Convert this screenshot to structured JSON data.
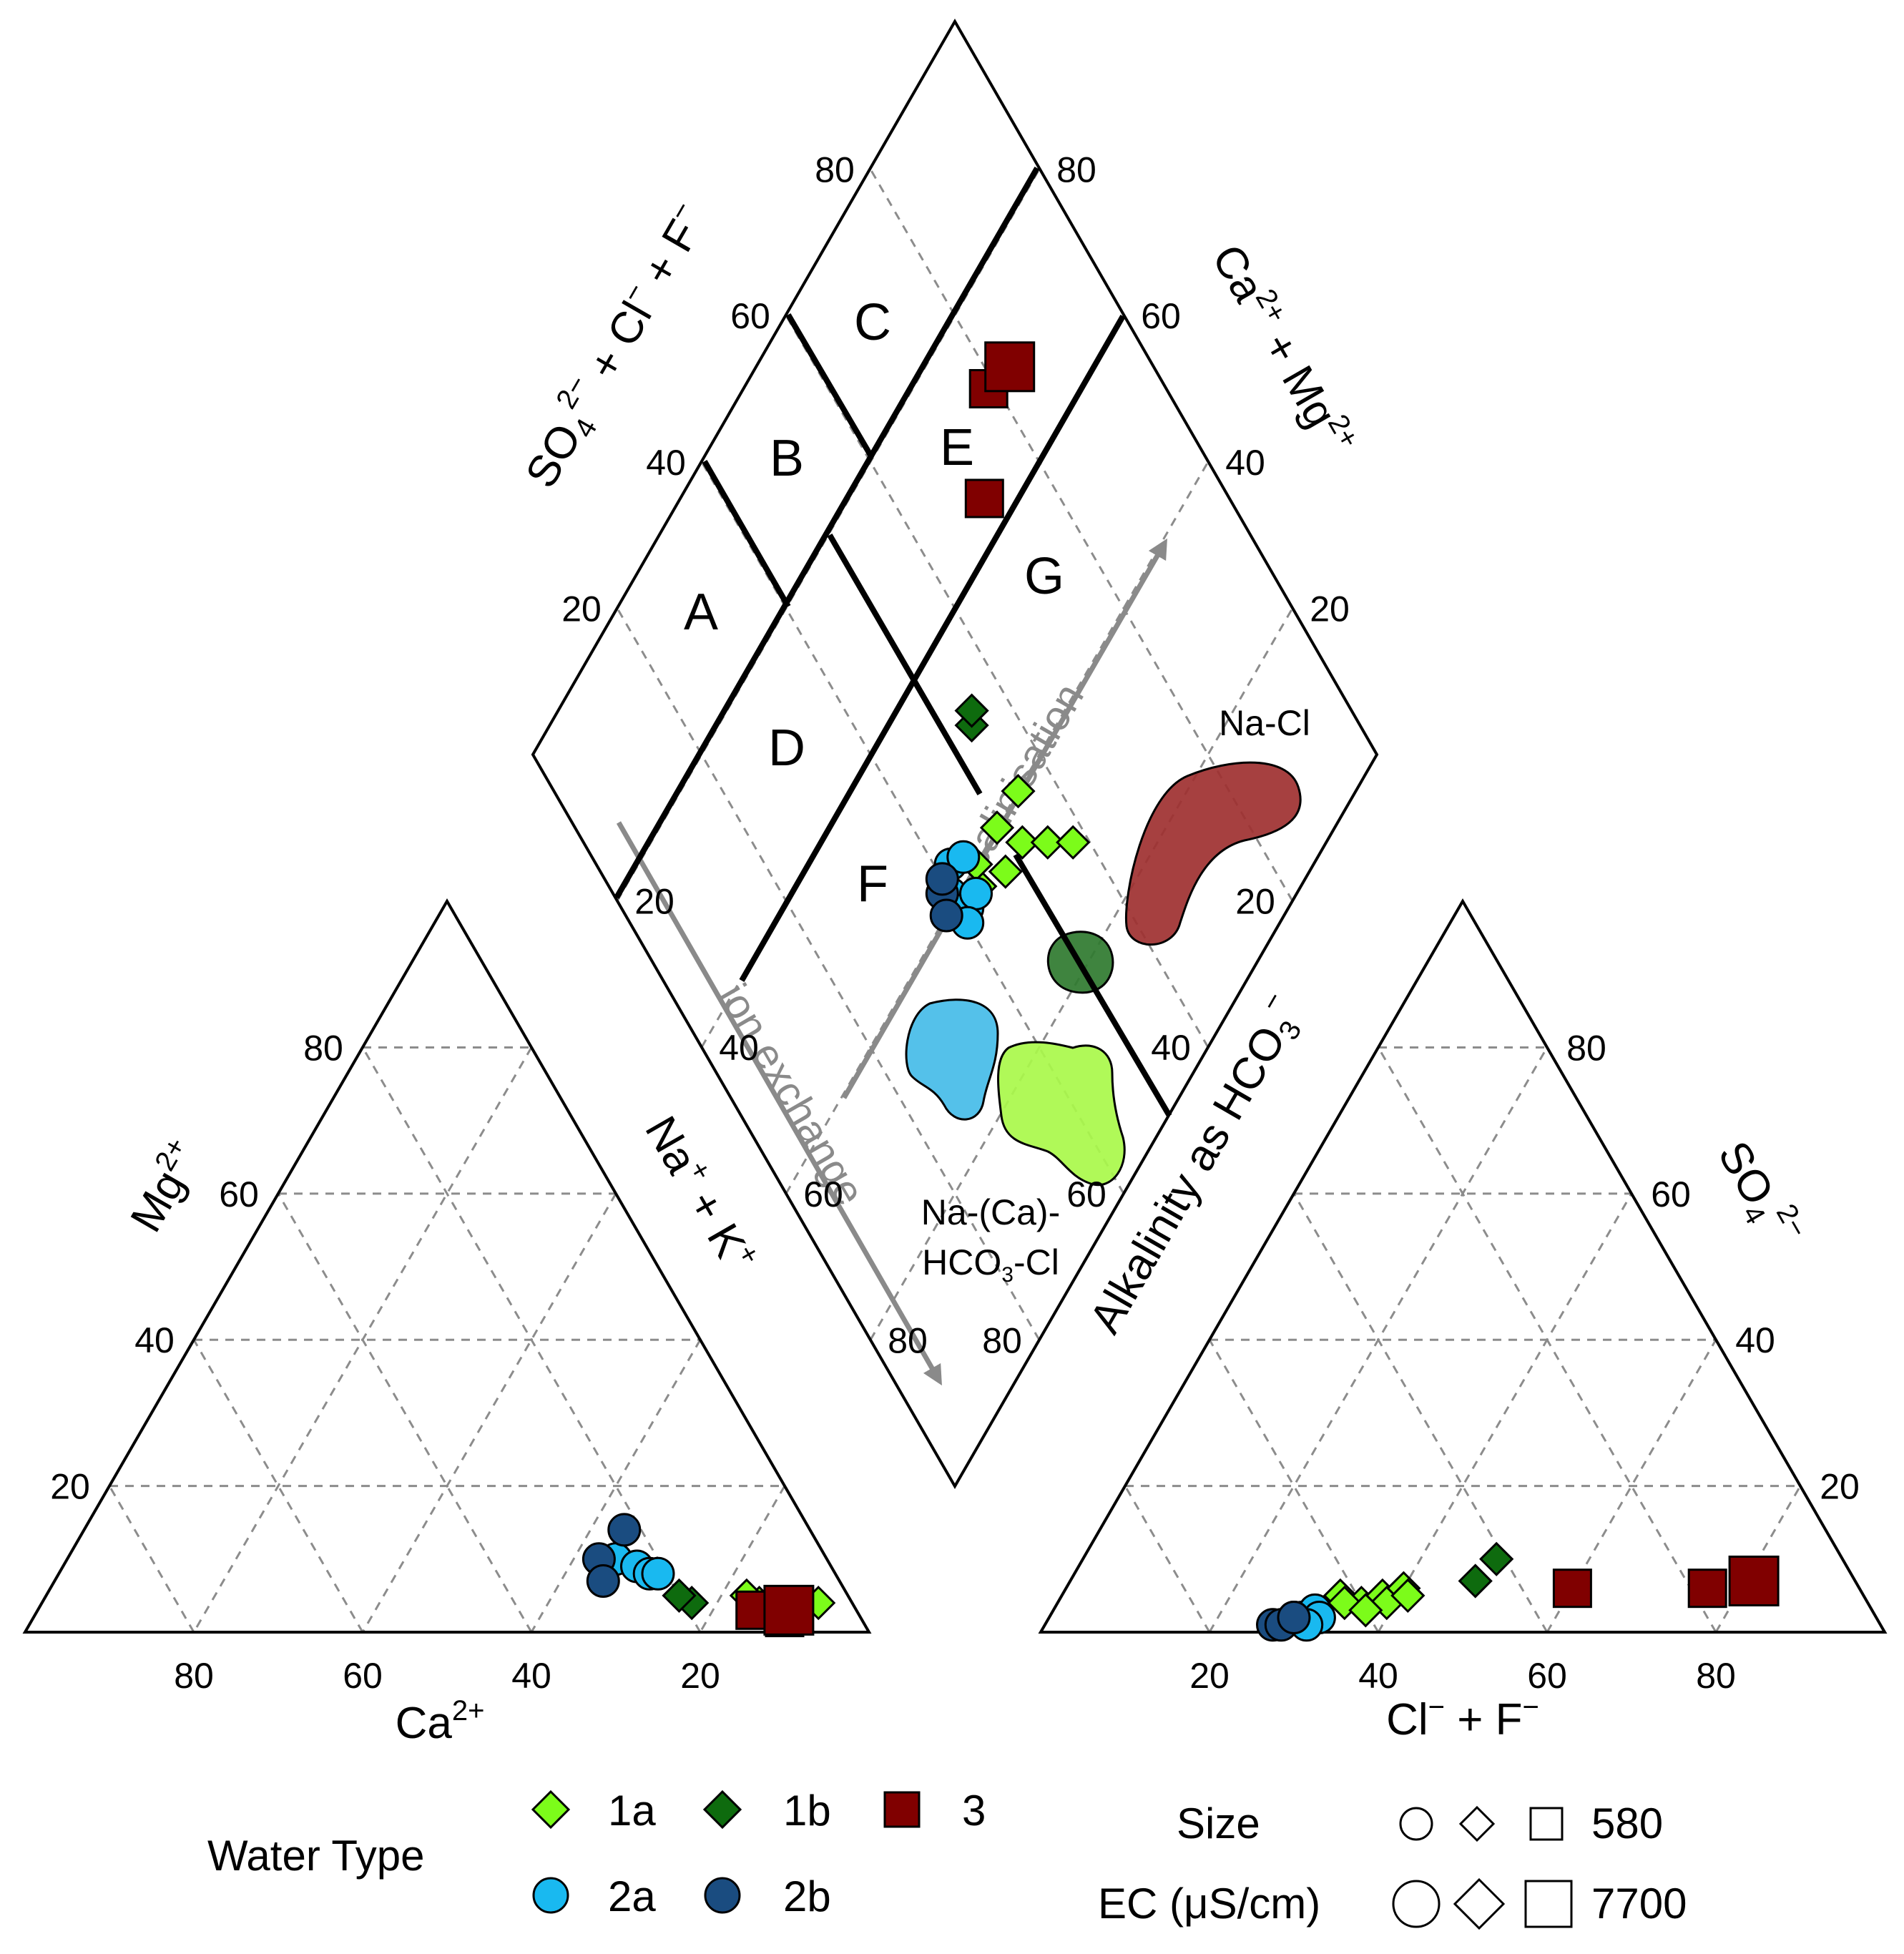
{
  "chart_data": {
    "type": "scatter",
    "subtype": "piper-diagram",
    "ticks": {
      "cation_triangle": [
        "80",
        "60",
        "40",
        "20"
      ],
      "anion_triangle": [
        "20",
        "40",
        "60",
        "80"
      ],
      "left_side": [
        "20",
        "40",
        "60",
        "80"
      ],
      "right_side": [
        "80",
        "60",
        "40",
        "20"
      ]
    },
    "axes": {
      "mg": {
        "base": "Mg",
        "sup": "2+"
      },
      "ca": {
        "base": "Ca",
        "sup": "2+"
      },
      "na_k": {
        "p1": "Na",
        "s1": "+",
        "p2": " + K",
        "s2": "+"
      },
      "alkalinity": {
        "p1": "Alkalinity as HCO",
        "sub": "3",
        "sup": "−"
      },
      "so4": {
        "base": "SO",
        "sub": "4",
        "sup": "2−"
      },
      "cl_f": {
        "p1": "Cl",
        "s1": "−",
        "p2": " + F",
        "s2": "−"
      },
      "so4_cl_f": {
        "p1": "SO",
        "sub1": "4",
        "sup1": "2−",
        "p2": " + Cl",
        "sup2": "−",
        "p3": " + F",
        "sup3": "−"
      },
      "ca_mg": {
        "p1": "Ca",
        "sup1": "2+",
        "p2": " + Mg",
        "sup2": "2+"
      }
    },
    "zones": [
      "A",
      "B",
      "C",
      "D",
      "E",
      "F",
      "G"
    ],
    "region_labels": {
      "na_cl": "Na-Cl",
      "na_ca_hco3_cl_1": "Na-(Ca)-",
      "na_ca_hco3_cl_2a": "HCO",
      "na_ca_hco3_cl_2sub": "3",
      "na_ca_hco3_cl_2b": "-Cl"
    },
    "arrows": {
      "salinisation": "salinisation",
      "ion_exchange": "ion exchange"
    },
    "series": [
      {
        "name": "1a",
        "marker": "diamond",
        "color": "#7cfc1a",
        "cation_points": [
          [
            4,
            4
          ],
          [
            11,
            4
          ],
          [
            12,
            5
          ]
        ],
        "anion_points": [
          [
            33,
            5
          ],
          [
            36,
            4
          ],
          [
            38,
            5
          ],
          [
            39,
            4
          ],
          [
            40,
            6
          ],
          [
            41,
            5
          ],
          [
            34,
            4
          ],
          [
            37,
            3
          ]
        ],
        "diamond_points": [
          [
            44,
            38
          ],
          [
            45,
            40
          ],
          [
            48,
            36
          ],
          [
            50,
            40
          ],
          [
            52,
            36
          ],
          [
            55,
            40
          ],
          [
            55,
            33
          ],
          [
            58,
            30
          ]
        ]
      },
      {
        "name": "1b",
        "marker": "diamond",
        "color": "#0e6b0e",
        "cation_points": [
          [
            19,
            4
          ],
          [
            20,
            5
          ]
        ],
        "anion_points": [
          [
            48,
            7
          ],
          [
            49,
            10
          ]
        ],
        "diamond_points": [
          [
            54,
            50
          ],
          [
            55,
            51
          ]
        ]
      },
      {
        "name": "2a",
        "marker": "circle",
        "color": "#19b9f0",
        "cation_points": [
          [
            25,
            10
          ],
          [
            23,
            9
          ],
          [
            22,
            8
          ],
          [
            21,
            8
          ]
        ],
        "anion_points": [
          [
            30,
            2
          ],
          [
            31,
            3
          ],
          [
            32,
            2
          ],
          [
            29,
            2
          ],
          [
            31,
            1
          ]
        ],
        "diamond_points": [
          [
            40,
            41
          ],
          [
            42,
            43
          ],
          [
            41,
            38
          ],
          [
            43,
            38
          ],
          [
            40,
            37
          ],
          [
            44,
            42
          ]
        ]
      },
      {
        "name": "2b",
        "marker": "circle",
        "color": "#1a4c80",
        "cation_points": [
          [
            22,
            14
          ],
          [
            27,
            10
          ],
          [
            28,
            7
          ]
        ],
        "anion_points": [
          [
            27,
            1
          ],
          [
            28,
            1
          ],
          [
            29,
            2
          ]
        ],
        "diamond_points": [
          [
            39,
            42
          ],
          [
            38,
            40
          ],
          [
            40,
            43
          ]
        ]
      },
      {
        "name": "3",
        "marker": "square",
        "color": "#800000",
        "cation_points": [
          [
            9,
            2
          ],
          [
            12,
            3
          ],
          [
            8,
            3
          ]
        ],
        "anion_points": [
          [
            60,
            6
          ],
          [
            76,
            6
          ],
          [
            81,
            7
          ]
        ],
        "diamond_points": [
          [
            71,
            64
          ],
          [
            79,
            71
          ],
          [
            83,
            70
          ]
        ]
      }
    ],
    "legend": {
      "water_type_title": "Water Type",
      "size_title": "Size",
      "ec_title": "EC (μS/cm)",
      "size_min": "580",
      "size_max": "7700"
    }
  },
  "colors": {
    "zone_1a": "#a9f94a",
    "zone_1b": "#2f7a2f",
    "zone_2": "#45bce8",
    "zone_3": "#9e3030",
    "arrow": "#8a8a8a",
    "grid": "#8c8c8c"
  }
}
